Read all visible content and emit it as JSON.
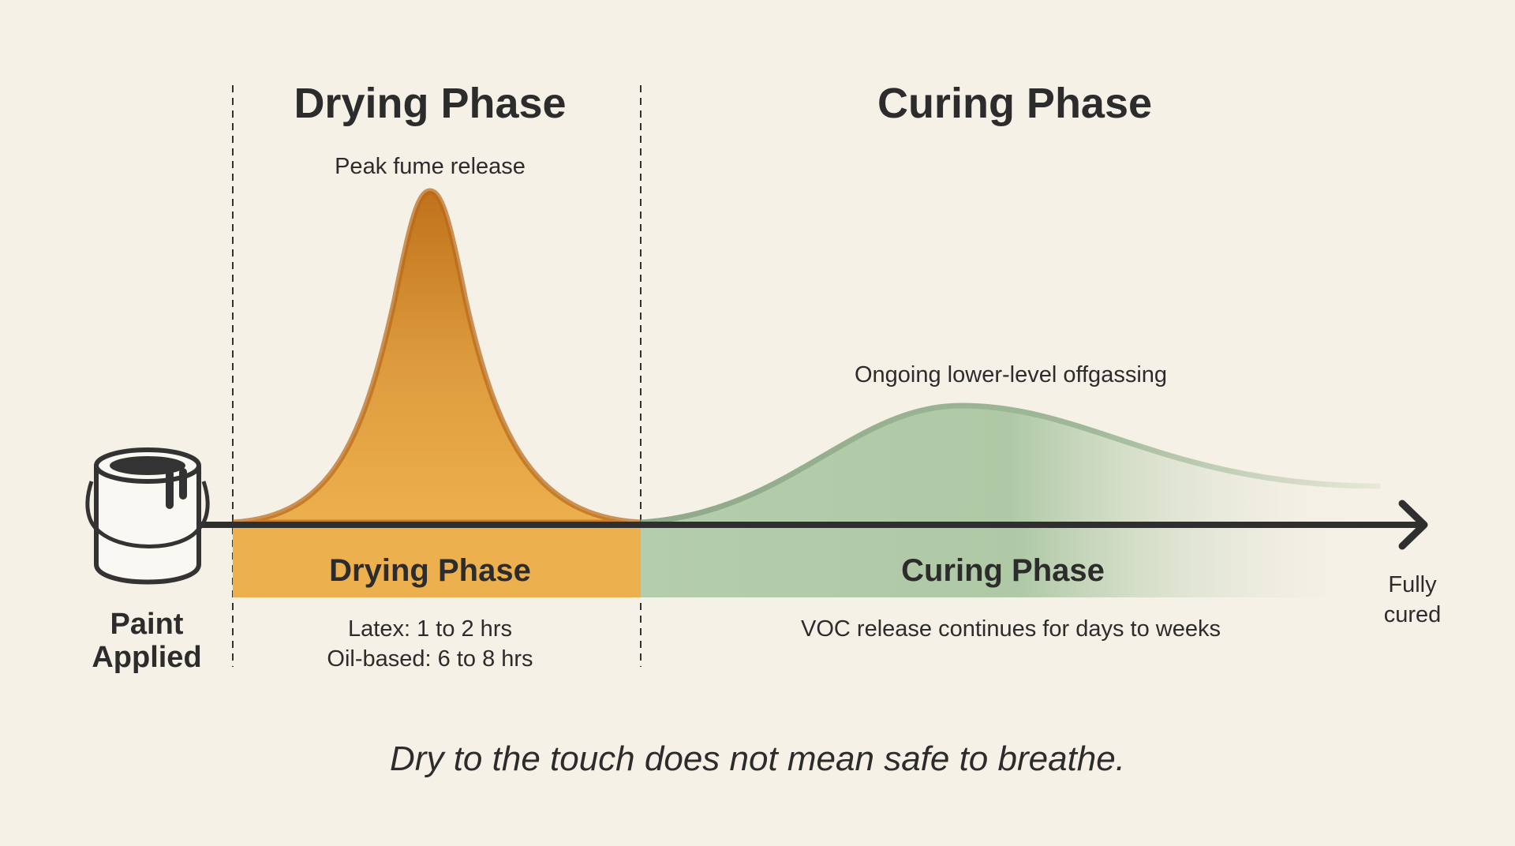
{
  "titles": {
    "drying": "Drying Phase",
    "curing": "Curing Phase"
  },
  "annotations": {
    "peak": "Peak fume release",
    "ongoing": "Ongoing lower-level offgassing"
  },
  "bands": {
    "drying": "Drying Phase",
    "curing": "Curing Phase"
  },
  "drying_times": {
    "latex": "Latex: 1 to 2 hrs",
    "oil": "Oil-based: 6 to 8 hrs"
  },
  "curing_note": "VOC release continues for days to weeks",
  "start": {
    "line1": "Paint",
    "line2": "Applied"
  },
  "end": {
    "line1": "Fully",
    "line2": "cured"
  },
  "caption": "Dry to the touch does not mean safe to breathe.",
  "colors": {
    "drying": "#e9ac47",
    "drying_dark": "#b2640f",
    "curing": "#a9c6a1",
    "curing_line": "#8ea889",
    "axis": "#2f2f2f",
    "background": "#f6f1e7"
  },
  "icons": {
    "start": "paint-can-icon",
    "end": "arrow-head-icon"
  }
}
